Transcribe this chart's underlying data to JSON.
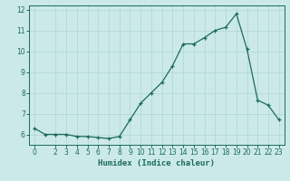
{
  "x": [
    0,
    1,
    2,
    3,
    4,
    5,
    6,
    7,
    8,
    9,
    10,
    11,
    12,
    13,
    14,
    15,
    16,
    17,
    18,
    19,
    20,
    21,
    22,
    23
  ],
  "y": [
    6.3,
    6.0,
    6.0,
    6.0,
    5.9,
    5.9,
    5.85,
    5.8,
    5.9,
    6.7,
    7.5,
    8.0,
    8.5,
    9.3,
    10.35,
    10.35,
    10.65,
    11.0,
    11.15,
    11.8,
    10.1,
    7.65,
    7.4,
    6.7
  ],
  "xlabel": "Humidex (Indice chaleur)",
  "xlim": [
    -0.5,
    23.5
  ],
  "ylim": [
    5.5,
    12.2
  ],
  "yticks": [
    6,
    7,
    8,
    9,
    10,
    11,
    12
  ],
  "xticks": [
    0,
    2,
    3,
    4,
    5,
    6,
    7,
    8,
    9,
    10,
    11,
    12,
    13,
    14,
    15,
    16,
    17,
    18,
    19,
    20,
    21,
    22,
    23
  ],
  "line_color": "#1a6b5a",
  "marker": "+",
  "bg_color": "#cce9e9",
  "grid_color": "#afd4d4",
  "title": ""
}
